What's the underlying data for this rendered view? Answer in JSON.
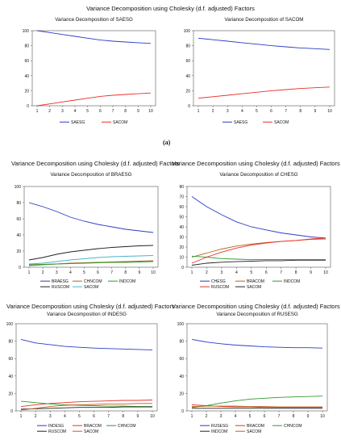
{
  "figure_label": "(a)",
  "colors": {
    "blue": "#2b3cc4",
    "red": "#e8302a",
    "black": "#222222",
    "green": "#2e9a2e",
    "brown": "#b5651d",
    "teal": "#4bb3c8"
  },
  "chart_data": [
    {
      "id": "saesg",
      "type": "line",
      "suptitle": "Variance Decomposition using Cholesky (d.f. adjusted) Factors",
      "title": "Variance Decomposition of SAESG",
      "x": [
        1,
        2,
        3,
        4,
        5,
        6,
        7,
        8,
        9,
        10
      ],
      "ylim": [
        0,
        100
      ],
      "yticks": [
        0,
        20,
        40,
        60,
        80,
        100
      ],
      "series": [
        {
          "name": "SAESG",
          "color": "#2b3cc4",
          "values": [
            100,
            97.5,
            95,
            92.5,
            90,
            87.5,
            86,
            85,
            84,
            83
          ]
        },
        {
          "name": "SACOM",
          "color": "#e8302a",
          "values": [
            0,
            2.5,
            5,
            7.5,
            10,
            12.5,
            14,
            15,
            16,
            17
          ]
        }
      ]
    },
    {
      "id": "sacom",
      "type": "line",
      "title": "Variance Decomposition of SACOM",
      "x": [
        1,
        2,
        3,
        4,
        5,
        6,
        7,
        8,
        9,
        10
      ],
      "ylim": [
        0,
        100
      ],
      "yticks": [
        0,
        20,
        40,
        60,
        80,
        100
      ],
      "series": [
        {
          "name": "SAESG",
          "color": "#2b3cc4",
          "values": [
            90,
            88,
            86,
            84,
            82,
            80,
            78.5,
            77,
            76,
            75
          ]
        },
        {
          "name": "SACOM",
          "color": "#e8302a",
          "values": [
            10,
            12,
            14,
            16,
            18,
            20,
            21.5,
            23,
            24,
            25
          ]
        }
      ]
    },
    {
      "id": "braesg",
      "type": "line",
      "suptitle": "Variance Decomposition using Cholesky (d.f. adjusted) Factors",
      "title": "Variance Decomposition of BRAESG",
      "x": [
        1,
        2,
        3,
        4,
        5,
        6,
        7,
        8,
        9,
        10
      ],
      "ylim": [
        0,
        100
      ],
      "yticks": [
        0,
        20,
        40,
        60,
        80,
        100
      ],
      "series": [
        {
          "name": "BRAESG",
          "color": "#2b3cc4",
          "values": [
            80,
            75,
            69,
            62,
            57,
            53,
            50,
            47,
            45,
            43
          ]
        },
        {
          "name": "CHNCOM",
          "color": "#b5651d",
          "values": [
            2,
            3,
            4,
            5,
            5.5,
            6,
            6.5,
            7,
            7.5,
            8
          ]
        },
        {
          "name": "INDCOM",
          "color": "#2e9a2e",
          "values": [
            3,
            3.5,
            4,
            4.5,
            5,
            5.5,
            6,
            6,
            6.5,
            7
          ]
        },
        {
          "name": "RUSCOM",
          "color": "#222222",
          "values": [
            9,
            12,
            16,
            19,
            21,
            23,
            24.5,
            25.5,
            26.5,
            27
          ]
        },
        {
          "name": "SACOM",
          "color": "#4bb3c8",
          "values": [
            4,
            5,
            7,
            9,
            10.5,
            12,
            13,
            13.5,
            14,
            14.5
          ]
        }
      ]
    },
    {
      "id": "chesg",
      "type": "line",
      "suptitle": "Variance Decomposition using Cholesky (d.f. adjusted) Factors",
      "title": "Variance Decomposition of CHESG",
      "x": [
        1,
        2,
        3,
        4,
        5,
        6,
        7,
        8,
        9,
        10
      ],
      "ylim": [
        0,
        80
      ],
      "yticks": [
        0,
        10,
        20,
        30,
        40,
        50,
        60,
        70,
        80
      ],
      "series": [
        {
          "name": "CHESG",
          "color": "#2b3cc4",
          "values": [
            70,
            60,
            52,
            45,
            40,
            37,
            34,
            32,
            30,
            29
          ]
        },
        {
          "name": "BRACOM",
          "color": "#b5651d",
          "values": [
            10,
            14,
            18,
            21,
            23,
            24.5,
            25.5,
            26.5,
            27.5,
            28
          ]
        },
        {
          "name": "INDCOM",
          "color": "#2e9a2e",
          "values": [
            11,
            10,
            8.5,
            8,
            7.5,
            7.5,
            7.5,
            7.5,
            7.5,
            7.5
          ]
        },
        {
          "name": "RUSCOM",
          "color": "#e8302a",
          "values": [
            4,
            10,
            15,
            19,
            22,
            24,
            25.5,
            26.5,
            28,
            29
          ]
        },
        {
          "name": "SACOM",
          "color": "#222222",
          "values": [
            2,
            4,
            5,
            5.5,
            6,
            6.5,
            6.5,
            7,
            7,
            7
          ]
        }
      ]
    },
    {
      "id": "indesg",
      "type": "line",
      "suptitle": "Variance Decomposition using Cholesky (d.f. adjusted) Factors",
      "title": "Variance Decomposition of INDESG",
      "x": [
        1,
        2,
        3,
        4,
        5,
        6,
        7,
        8,
        9,
        10
      ],
      "ylim": [
        0,
        100
      ],
      "yticks": [
        0,
        20,
        40,
        60,
        80,
        100
      ],
      "series": [
        {
          "name": "INDESG",
          "color": "#2b3cc4",
          "values": [
            82,
            78,
            76,
            74,
            73,
            72,
            71.5,
            71,
            70.5,
            70
          ]
        },
        {
          "name": "BRACOM",
          "color": "#e8302a",
          "values": [
            5,
            7,
            8.5,
            9.5,
            10.5,
            11,
            11.5,
            12,
            12,
            12.5
          ]
        },
        {
          "name": "CHNCOM",
          "color": "#2e9a2e",
          "values": [
            11,
            9.5,
            8,
            7,
            6.5,
            6,
            5.5,
            5.5,
            5,
            5
          ]
        },
        {
          "name": "RUSCOM",
          "color": "#222222",
          "values": [
            2,
            2.5,
            3,
            3.5,
            4,
            4,
            4,
            4.5,
            4.5,
            4.5
          ]
        },
        {
          "name": "SACOM",
          "color": "#b5651d",
          "values": [
            1,
            3,
            5,
            6.5,
            7,
            7.5,
            8,
            8,
            8.5,
            8.5
          ]
        }
      ]
    },
    {
      "id": "rusesg",
      "type": "line",
      "suptitle": "Variance Decomposition using Cholesky (d.f. adjusted) Factors",
      "title": "Variance Decomposition of RUSESG",
      "x": [
        1,
        2,
        3,
        4,
        5,
        6,
        7,
        8,
        9,
        10
      ],
      "ylim": [
        0,
        100
      ],
      "yticks": [
        0,
        20,
        40,
        60,
        80,
        100
      ],
      "series": [
        {
          "name": "RUSESG",
          "color": "#2b3cc4",
          "values": [
            82,
            79,
            77,
            75.5,
            74.5,
            73.5,
            73,
            72.5,
            72.5,
            72
          ]
        },
        {
          "name": "BRACOM",
          "color": "#e8302a",
          "values": [
            7,
            6,
            5,
            4.5,
            4.5,
            4,
            4,
            4,
            4,
            4
          ]
        },
        {
          "name": "CHNCOM",
          "color": "#2e9a2e",
          "values": [
            4,
            6,
            9,
            11.5,
            13.5,
            14.5,
            15.5,
            16,
            16.5,
            17
          ]
        },
        {
          "name": "INDCOM",
          "color": "#222222",
          "values": [
            3,
            3,
            3,
            3,
            3,
            3,
            3,
            3,
            3,
            3
          ]
        },
        {
          "name": "SACOM",
          "color": "#b5651d",
          "values": [
            5,
            5.5,
            5.5,
            5.5,
            5,
            5,
            4.5,
            4.5,
            4.5,
            4.5
          ]
        }
      ]
    }
  ]
}
